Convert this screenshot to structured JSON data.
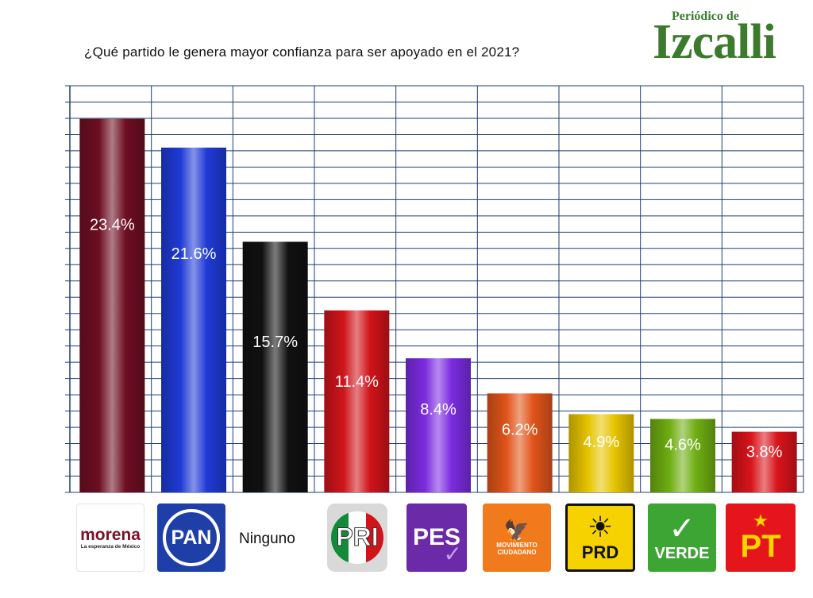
{
  "title": "¿Qué partido le genera mayor confianza para ser apoyado en el 2021?",
  "brand": {
    "pre": "Periódico de",
    "main": "Izcalli"
  },
  "colors": {
    "brand": "#3c7a2e",
    "grid": "#1f3d7a"
  },
  "chart_data": {
    "type": "bar",
    "title": "¿Qué partido le genera mayor confianza para ser apoyado en el 2021?",
    "xlabel": "",
    "ylabel": "",
    "grid": true,
    "legend": "none",
    "categories": [
      "morena",
      "PAN",
      "Ninguno",
      "PRI",
      "PES",
      "Movimiento Ciudadano",
      "PRD",
      "VERDE",
      "PT"
    ],
    "values": [
      23.4,
      21.6,
      15.7,
      11.4,
      8.4,
      6.2,
      4.9,
      4.6,
      3.8
    ],
    "labels": [
      "23.4%",
      "21.6%",
      "15.7%",
      "11.4%",
      "8.4%",
      "6.2%",
      "4.9%",
      "4.6%",
      "3.8%"
    ],
    "bar_colors": [
      "#6e0f22",
      "#1f3ad6",
      "#111111",
      "#d0141a",
      "#7b2ce0",
      "#e1541a",
      "#e6c400",
      "#6fae12",
      "#d8141a"
    ],
    "ylim": [
      0,
      25
    ]
  },
  "logos": {
    "morena": {
      "name": "morena",
      "sub": "La esperanza de México"
    },
    "pan": "PAN",
    "ninguno": "Ninguno",
    "pri": "PRI",
    "pes": "PES",
    "mc": {
      "line1": "MOVIMIENTO",
      "line2": "CIUDADANO"
    },
    "prd": "PRD",
    "verde": "VERDE",
    "pt": "PT"
  }
}
